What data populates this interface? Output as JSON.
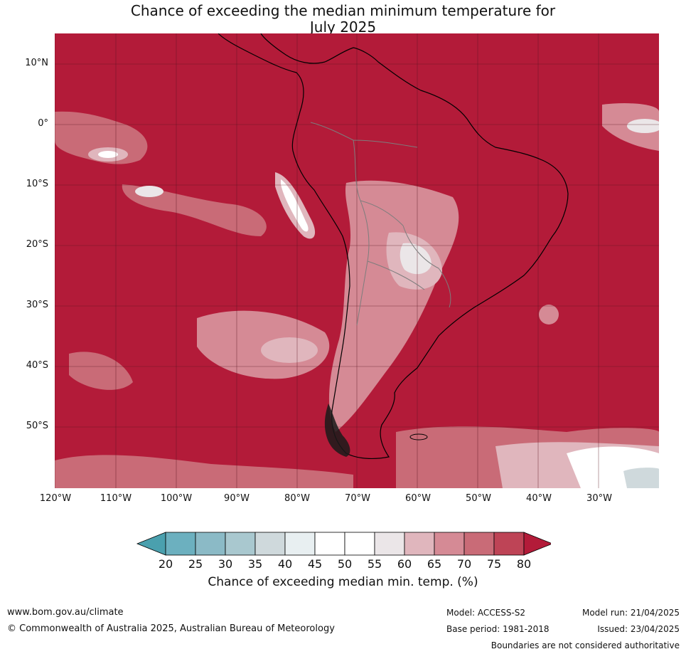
{
  "title_line1": "Chance of exceeding the median minimum temperature for",
  "title_line2": "July 2025",
  "map": {
    "lat_labels": [
      "10°N",
      "0°",
      "10°S",
      "20°S",
      "30°S",
      "40°S",
      "50°S"
    ],
    "lon_labels": [
      "120°W",
      "110°W",
      "100°W",
      "90°W",
      "80°W",
      "70°W",
      "60°W",
      "50°W",
      "40°W",
      "30°W"
    ],
    "lat_range": [
      -60,
      15
    ],
    "lon_range": [
      -120,
      -20
    ],
    "grid": true,
    "dominant_color": "#b31b39"
  },
  "colorbar": {
    "ticks": [
      "20",
      "25",
      "30",
      "35",
      "40",
      "45",
      "50",
      "55",
      "60",
      "65",
      "70",
      "75",
      "80"
    ],
    "colors": [
      "#4aa0ae",
      "#6cb0bf",
      "#8bbac6",
      "#a9c8cf",
      "#cfd9dc",
      "#e8eff1",
      "#ffffff",
      "#ffffff",
      "#ebe6e8",
      "#e0b6bd",
      "#d58a95",
      "#c96b77",
      "#be4456",
      "#b31b39"
    ],
    "label": "Chance of exceeding median min. temp. (%)"
  },
  "footer": {
    "website": "www.bom.gov.au/climate",
    "copyright": "© Commonwealth of Australia 2025, Australian Bureau of Meteorology",
    "model": "Model: ACCESS-S2",
    "base_period": "Base period: 1981-2018",
    "model_run": "Model run: 21/04/2025",
    "issued": "Issued: 23/04/2025",
    "disclaimer": "Boundaries are not considered authoritative"
  }
}
